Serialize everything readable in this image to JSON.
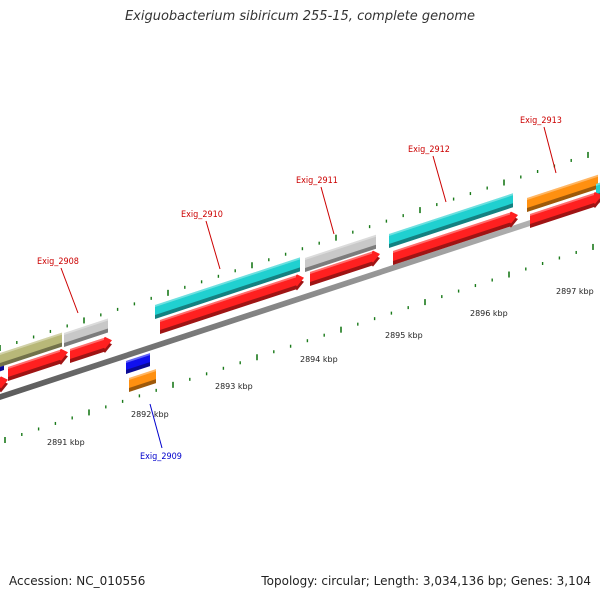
{
  "title": "Exiguobacterium sibiricum 255-15, complete genome",
  "footer": {
    "accession": "Accession: NC_010556",
    "info": "Topology: circular; Length: 3,034,136 bp; Genes: 3,104"
  },
  "colors": {
    "background": "#ffffff",
    "backbone": "#8a8a8a",
    "tick": "#1a7a1a",
    "cds": "#ff2020",
    "forward_label": "#cc0000",
    "reverse_label": "#0000cc",
    "teal": "#20d0d0",
    "gray": "#c8c8c8",
    "olive": "#b8b878",
    "orange": "#ff9010",
    "blue": "#1010ee"
  },
  "scale": {
    "labels": [
      "2891 kbp",
      "2892 kbp",
      "2893 kbp",
      "2894 kbp",
      "2895 kbp",
      "2896 kbp",
      "2897 kbp"
    ]
  },
  "genes": [
    {
      "id": "Exig_2908",
      "strand": "forward",
      "label_color": "#cc0000"
    },
    {
      "id": "Exig_2909",
      "strand": "reverse",
      "label_color": "#0000cc"
    },
    {
      "id": "Exig_2910",
      "strand": "forward",
      "label_color": "#cc0000"
    },
    {
      "id": "Exig_2911",
      "strand": "forward",
      "label_color": "#cc0000"
    },
    {
      "id": "Exig_2912",
      "strand": "forward",
      "label_color": "#cc0000"
    },
    {
      "id": "Exig_2913",
      "strand": "forward",
      "label_color": "#cc0000"
    }
  ]
}
